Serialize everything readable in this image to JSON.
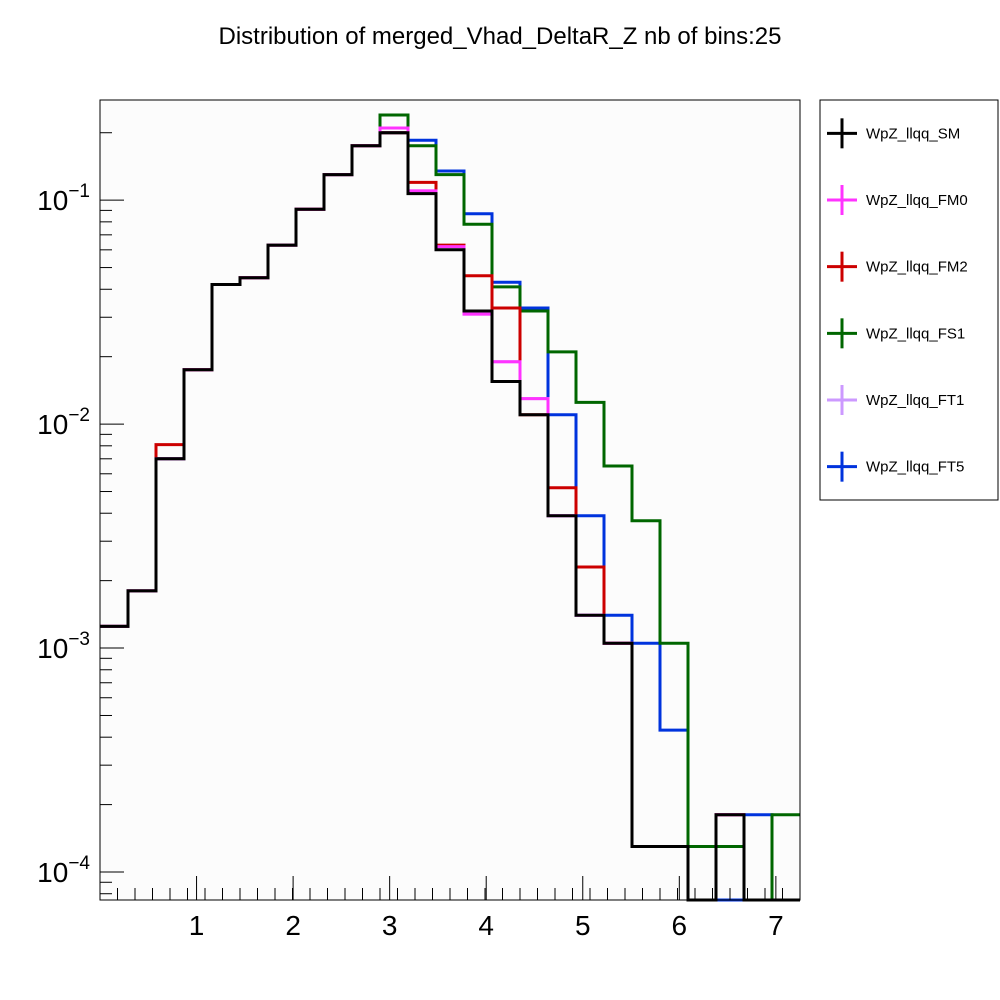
{
  "chart_data": {
    "type": "line",
    "style": "step-histogram",
    "title": "Distribution of merged_Vhad_DeltaR_Z nb of bins:25",
    "yscale": "log",
    "xlim": [
      0,
      7.25
    ],
    "ylim": [
      7.5e-05,
      0.28
    ],
    "x_ticks": [
      1,
      2,
      3,
      4,
      5,
      6,
      7
    ],
    "x_tick_labels": [
      "1",
      "2",
      "3",
      "4",
      "5",
      "6",
      "7"
    ],
    "y_ticks": [
      {
        "value": 0.1,
        "base": "10",
        "exp": "−1"
      },
      {
        "value": 0.01,
        "base": "10",
        "exp": "−2"
      },
      {
        "value": 0.001,
        "base": "10",
        "exp": "−3"
      },
      {
        "value": 0.0001,
        "base": "10",
        "exp": "−4"
      }
    ],
    "bin_edges": [
      0.0,
      0.29,
      0.58,
      0.87,
      1.16,
      1.45,
      1.74,
      2.03,
      2.32,
      2.61,
      2.9,
      3.19,
      3.48,
      3.77,
      4.06,
      4.35,
      4.64,
      4.93,
      5.22,
      5.51,
      5.8,
      6.09,
      6.38,
      6.67,
      6.96,
      7.25
    ],
    "legend_position": "right-outside",
    "series": [
      {
        "name": "WpZ_llqq_SM",
        "color": "#000000",
        "values": [
          0.00125,
          0.0018,
          0.007,
          0.0175,
          0.042,
          0.045,
          0.063,
          0.091,
          0.13,
          0.175,
          0.2,
          0.107,
          0.06,
          0.032,
          0.0155,
          0.011,
          0.0039,
          0.0014,
          0.00105,
          0.00013,
          0.00013,
          7e-05,
          0.00018,
          7e-05,
          7e-05
        ]
      },
      {
        "name": "WpZ_llqq_FM0",
        "color": "#ff33ff",
        "values": [
          0.00125,
          0.0018,
          0.007,
          0.0175,
          0.042,
          0.045,
          0.063,
          0.091,
          0.13,
          0.175,
          0.21,
          0.11,
          0.062,
          0.031,
          0.019,
          0.013,
          0.0039,
          0.0014,
          0.00105,
          0.00013,
          0.00013,
          7e-05,
          0.00018,
          7e-05,
          7e-05
        ]
      },
      {
        "name": "WpZ_llqq_FM2",
        "color": "#cc0000",
        "values": [
          0.00125,
          0.0018,
          0.0081,
          0.0175,
          0.042,
          0.045,
          0.063,
          0.091,
          0.13,
          0.175,
          0.2,
          0.12,
          0.063,
          0.046,
          0.033,
          0.011,
          0.0052,
          0.0023,
          0.00105,
          0.00013,
          0.00013,
          7e-05,
          0.00018,
          7e-05,
          7e-05
        ]
      },
      {
        "name": "WpZ_llqq_FS1",
        "color": "#006600",
        "values": [
          0.00125,
          0.0018,
          0.007,
          0.0175,
          0.042,
          0.045,
          0.063,
          0.091,
          0.13,
          0.175,
          0.24,
          0.175,
          0.13,
          0.078,
          0.041,
          0.032,
          0.021,
          0.0125,
          0.0065,
          0.0037,
          0.00105,
          0.00013,
          0.00013,
          7e-05,
          0.00018
        ]
      },
      {
        "name": "WpZ_llqq_FT1",
        "color": "#cc99ff",
        "values": [
          0.00125,
          0.0018,
          0.007,
          0.0175,
          0.042,
          0.045,
          0.063,
          0.091,
          0.13,
          0.175,
          0.21,
          0.11,
          0.062,
          0.031,
          0.019,
          0.013,
          0.0039,
          0.0014,
          0.00105,
          0.00013,
          0.00013,
          7e-05,
          0.00018,
          7e-05,
          7e-05
        ]
      },
      {
        "name": "WpZ_llqq_FT5",
        "color": "#0033dd",
        "values": [
          0.00125,
          0.0018,
          0.007,
          0.0175,
          0.042,
          0.045,
          0.063,
          0.091,
          0.13,
          0.175,
          0.2,
          0.185,
          0.135,
          0.087,
          0.043,
          0.033,
          0.011,
          0.0039,
          0.0014,
          0.00105,
          0.00043,
          0.00013,
          7e-05,
          0.00018,
          7e-05
        ]
      }
    ]
  }
}
